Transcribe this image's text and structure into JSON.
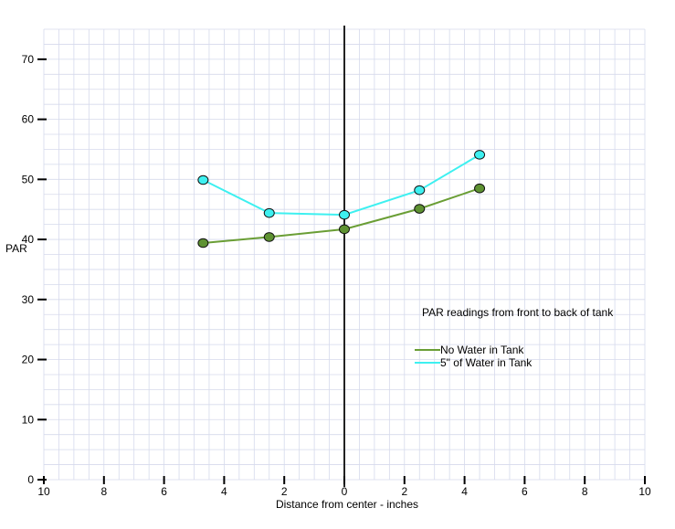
{
  "chart_data": {
    "type": "line",
    "title": "PAR readings from front to back of tank",
    "xlabel": "Distance from center - inches",
    "ylabel": "PAR",
    "xlim": [
      -10,
      10
    ],
    "ylim": [
      0,
      75
    ],
    "x_tick_labels": [
      "10",
      "8",
      "6",
      "4",
      "2",
      "0",
      "2",
      "4",
      "6",
      "8",
      "10"
    ],
    "x_tick_values": [
      -10,
      -8,
      -6,
      -4,
      -2,
      0,
      2,
      4,
      6,
      8,
      10
    ],
    "y_ticks": [
      0,
      10,
      20,
      30,
      40,
      50,
      60,
      70
    ],
    "grid": true,
    "legend_position": "right",
    "series": [
      {
        "name": "No Water in Tank",
        "color": "#6a9e35",
        "marker_fill": "#5e9232",
        "x": [
          -4.7,
          -2.5,
          0,
          2.5,
          4.5
        ],
        "y": [
          39.4,
          40.4,
          41.7,
          45.1,
          48.5
        ]
      },
      {
        "name": "5\" of Water in Tank",
        "color": "#3ef0f0",
        "marker_fill": "#3ef0f0",
        "x": [
          -4.7,
          -2.5,
          0,
          2.5,
          4.5
        ],
        "y": [
          49.9,
          44.4,
          44.1,
          48.2,
          54.1
        ]
      }
    ],
    "grid_color": "#d6daec",
    "center_line_x": 0
  }
}
